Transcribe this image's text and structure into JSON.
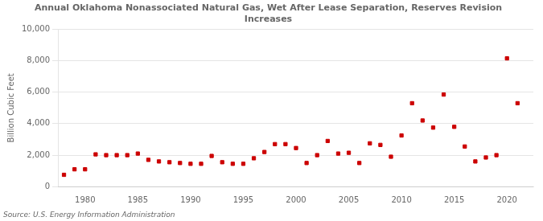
{
  "chart_data": {
    "type": "scatter",
    "title": "Annual Oklahoma Nonassociated Natural Gas, Wet After Lease Separation, Reserves Revision\nIncreases",
    "y_label": "Billion Cubic Feet",
    "source": "Source: U.S. Energy Information Administration",
    "color": "#cc0000",
    "marker": "square",
    "grid": "y",
    "xlim": [
      1977.5,
      2022.5
    ],
    "xticks": [
      1980,
      1985,
      1990,
      1995,
      2000,
      2005,
      2010,
      2015,
      2020
    ],
    "ylim": [
      0,
      10000
    ],
    "yticks": [
      0,
      {
        "value": 2000,
        "label": "2,000"
      },
      {
        "value": 4000,
        "label": "4,000"
      },
      {
        "value": 6000,
        "label": "6,000"
      },
      {
        "value": 8000,
        "label": "8,000"
      },
      {
        "value": 10000,
        "label": "10,000"
      }
    ],
    "x": [
      1978,
      1979,
      1980,
      1981,
      1982,
      1983,
      1984,
      1985,
      1986,
      1987,
      1988,
      1989,
      1990,
      1991,
      1992,
      1993,
      1994,
      1995,
      1996,
      1997,
      1998,
      1999,
      2000,
      2001,
      2002,
      2003,
      2004,
      2005,
      2006,
      2007,
      2008,
      2009,
      2010,
      2011,
      2012,
      2013,
      2014,
      2015,
      2016,
      2017,
      2018,
      2019,
      2020,
      2021
    ],
    "values": [
      750,
      1100,
      1100,
      2050,
      2000,
      2000,
      2000,
      2100,
      1700,
      1600,
      1550,
      1500,
      1450,
      1450,
      1950,
      1550,
      1450,
      1450,
      1800,
      2200,
      2700,
      2700,
      2450,
      1500,
      2000,
      2900,
      2100,
      2150,
      1500,
      2750,
      2650,
      1900,
      3250,
      5300,
      4200,
      3750,
      5850,
      3800,
      2550,
      1600,
      1850,
      2000,
      8150,
      5300
    ]
  }
}
